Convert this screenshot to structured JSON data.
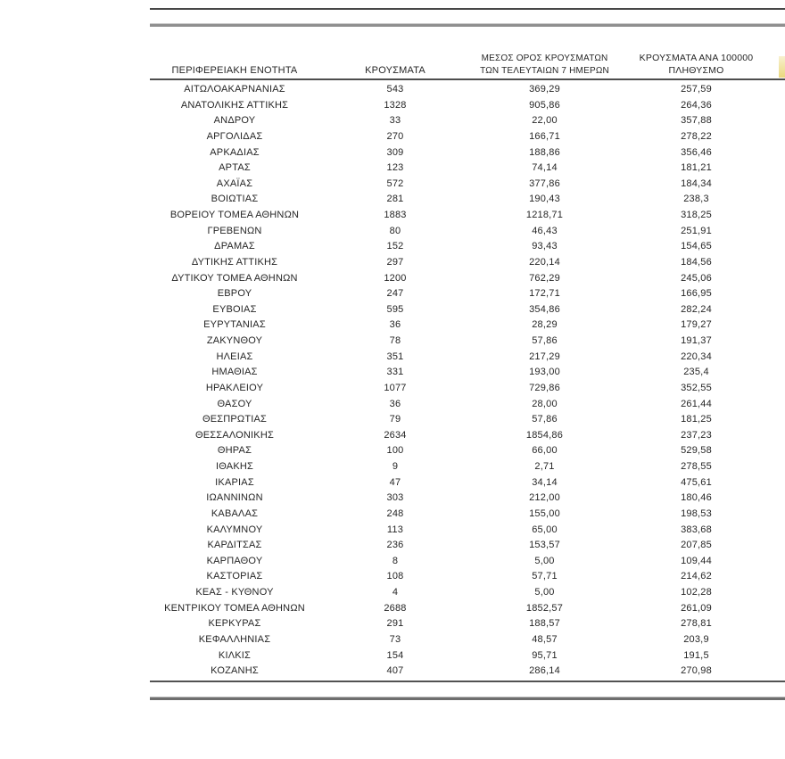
{
  "colors": {
    "text": "#262626",
    "rule_dark": "#474747",
    "rule_gray": "#8f8f8f",
    "highlight_fragment": "#ead87e"
  },
  "table": {
    "columns": [
      {
        "label": "ΠΕΡΙΦΕΡΕΙΑΚΗ ΕΝΟΤΗΤΑ"
      },
      {
        "label": "ΚΡΟΥΣΜΑΤΑ"
      },
      {
        "label_line1": "ΜΕΣΟΣ ΟΡΟΣ ΚΡΟΥΣΜΑΤΩΝ",
        "label_line2": "ΤΩΝ ΤΕΛΕΥΤΑΙΩΝ 7 ΗΜΕΡΩΝ"
      },
      {
        "label_line1": "ΚΡΟΥΣΜΑΤΑ ΑΝΑ 100000",
        "label_line2": "ΠΛΗΘΥΣΜΟ"
      }
    ],
    "rows": [
      {
        "region": "ΑΙΤΩΛΟΑΚΑΡΝΑΝΙΑΣ",
        "cases": "543",
        "avg7day": "369,29",
        "per100k": "257,59"
      },
      {
        "region": "ΑΝΑΤΟΛΙΚΗΣ ΑΤΤΙΚΗΣ",
        "cases": "1328",
        "avg7day": "905,86",
        "per100k": "264,36"
      },
      {
        "region": "ΑΝΔΡΟΥ",
        "cases": "33",
        "avg7day": "22,00",
        "per100k": "357,88"
      },
      {
        "region": "ΑΡΓΟΛΙΔΑΣ",
        "cases": "270",
        "avg7day": "166,71",
        "per100k": "278,22"
      },
      {
        "region": "ΑΡΚΑΔΙΑΣ",
        "cases": "309",
        "avg7day": "188,86",
        "per100k": "356,46"
      },
      {
        "region": "ΑΡΤΑΣ",
        "cases": "123",
        "avg7day": "74,14",
        "per100k": "181,21"
      },
      {
        "region": "ΑΧΑΪΑΣ",
        "cases": "572",
        "avg7day": "377,86",
        "per100k": "184,34"
      },
      {
        "region": "ΒΟΙΩΤΙΑΣ",
        "cases": "281",
        "avg7day": "190,43",
        "per100k": "238,3"
      },
      {
        "region": "ΒΟΡΕΙΟΥ ΤΟΜΕΑ ΑΘΗΝΩΝ",
        "cases": "1883",
        "avg7day": "1218,71",
        "per100k": "318,25"
      },
      {
        "region": "ΓΡΕΒΕΝΩΝ",
        "cases": "80",
        "avg7day": "46,43",
        "per100k": "251,91"
      },
      {
        "region": "ΔΡΑΜΑΣ",
        "cases": "152",
        "avg7day": "93,43",
        "per100k": "154,65"
      },
      {
        "region": "ΔΥΤΙΚΗΣ ΑΤΤΙΚΗΣ",
        "cases": "297",
        "avg7day": "220,14",
        "per100k": "184,56"
      },
      {
        "region": "ΔΥΤΙΚΟΥ ΤΟΜΕΑ ΑΘΗΝΩΝ",
        "cases": "1200",
        "avg7day": "762,29",
        "per100k": "245,06"
      },
      {
        "region": "ΕΒΡΟΥ",
        "cases": "247",
        "avg7day": "172,71",
        "per100k": "166,95"
      },
      {
        "region": "ΕΥΒΟΙΑΣ",
        "cases": "595",
        "avg7day": "354,86",
        "per100k": "282,24"
      },
      {
        "region": "ΕΥΡΥΤΑΝΙΑΣ",
        "cases": "36",
        "avg7day": "28,29",
        "per100k": "179,27"
      },
      {
        "region": "ΖΑΚΥΝΘΟΥ",
        "cases": "78",
        "avg7day": "57,86",
        "per100k": "191,37"
      },
      {
        "region": "ΗΛΕΙΑΣ",
        "cases": "351",
        "avg7day": "217,29",
        "per100k": "220,34"
      },
      {
        "region": "ΗΜΑΘΙΑΣ",
        "cases": "331",
        "avg7day": "193,00",
        "per100k": "235,4"
      },
      {
        "region": "ΗΡΑΚΛΕΙΟΥ",
        "cases": "1077",
        "avg7day": "729,86",
        "per100k": "352,55"
      },
      {
        "region": "ΘΑΣΟΥ",
        "cases": "36",
        "avg7day": "28,00",
        "per100k": "261,44"
      },
      {
        "region": "ΘΕΣΠΡΩΤΙΑΣ",
        "cases": "79",
        "avg7day": "57,86",
        "per100k": "181,25"
      },
      {
        "region": "ΘΕΣΣΑΛΟΝΙΚΗΣ",
        "cases": "2634",
        "avg7day": "1854,86",
        "per100k": "237,23"
      },
      {
        "region": "ΘΗΡΑΣ",
        "cases": "100",
        "avg7day": "66,00",
        "per100k": "529,58"
      },
      {
        "region": "ΙΘΑΚΗΣ",
        "cases": "9",
        "avg7day": "2,71",
        "per100k": "278,55"
      },
      {
        "region": "ΙΚΑΡΙΑΣ",
        "cases": "47",
        "avg7day": "34,14",
        "per100k": "475,61"
      },
      {
        "region": "ΙΩΑΝΝΙΝΩΝ",
        "cases": "303",
        "avg7day": "212,00",
        "per100k": "180,46"
      },
      {
        "region": "ΚΑΒΑΛΑΣ",
        "cases": "248",
        "avg7day": "155,00",
        "per100k": "198,53"
      },
      {
        "region": "ΚΑΛΥΜΝΟΥ",
        "cases": "113",
        "avg7day": "65,00",
        "per100k": "383,68"
      },
      {
        "region": "ΚΑΡΔΙΤΣΑΣ",
        "cases": "236",
        "avg7day": "153,57",
        "per100k": "207,85"
      },
      {
        "region": "ΚΑΡΠΑΘΟΥ",
        "cases": "8",
        "avg7day": "5,00",
        "per100k": "109,44"
      },
      {
        "region": "ΚΑΣΤΟΡΙΑΣ",
        "cases": "108",
        "avg7day": "57,71",
        "per100k": "214,62"
      },
      {
        "region": "ΚΕΑΣ - ΚΥΘΝΟΥ",
        "cases": "4",
        "avg7day": "5,00",
        "per100k": "102,28"
      },
      {
        "region": "ΚΕΝΤΡΙΚΟΥ ΤΟΜΕΑ ΑΘΗΝΩΝ",
        "cases": "2688",
        "avg7day": "1852,57",
        "per100k": "261,09"
      },
      {
        "region": "ΚΕΡΚΥΡΑΣ",
        "cases": "291",
        "avg7day": "188,57",
        "per100k": "278,81"
      },
      {
        "region": "ΚΕΦΑΛΛΗΝΙΑΣ",
        "cases": "73",
        "avg7day": "48,57",
        "per100k": "203,9"
      },
      {
        "region": "ΚΙΛΚΙΣ",
        "cases": "154",
        "avg7day": "95,71",
        "per100k": "191,5"
      },
      {
        "region": "ΚΟΖΑΝΗΣ",
        "cases": "407",
        "avg7day": "286,14",
        "per100k": "270,98"
      }
    ]
  }
}
